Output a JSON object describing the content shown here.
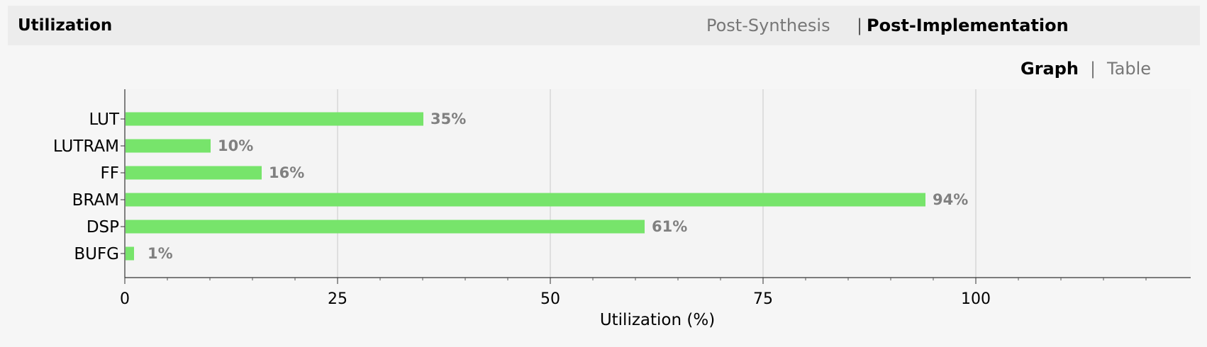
{
  "header": {
    "title": "Utilization",
    "tabs": [
      "Post-Synthesis",
      "Post-Implementation"
    ],
    "separator": "|",
    "active_tab": "Post-Implementation"
  },
  "view_tabs": {
    "graph_label": "Graph",
    "separator": "|",
    "table_label": "Table",
    "active": "Graph"
  },
  "colors": {
    "bar": "#77e46b",
    "value_label": "#808080",
    "grid": "#c8c8c8"
  },
  "chart_data": {
    "type": "bar",
    "orientation": "horizontal",
    "categories": [
      "LUT",
      "LUTRAM",
      "FF",
      "BRAM",
      "DSP",
      "BUFG"
    ],
    "values": [
      35,
      10,
      16,
      94,
      61,
      1
    ],
    "value_labels": [
      "35%",
      "10%",
      "16%",
      "94%",
      "61%",
      "1%"
    ],
    "xlabel": "Utilization (%)",
    "xlim": [
      0,
      125
    ],
    "xticks": [
      0,
      25,
      50,
      75,
      100
    ],
    "xtick_labels": [
      "0",
      "25",
      "50",
      "75",
      "100"
    ],
    "grid": true
  }
}
